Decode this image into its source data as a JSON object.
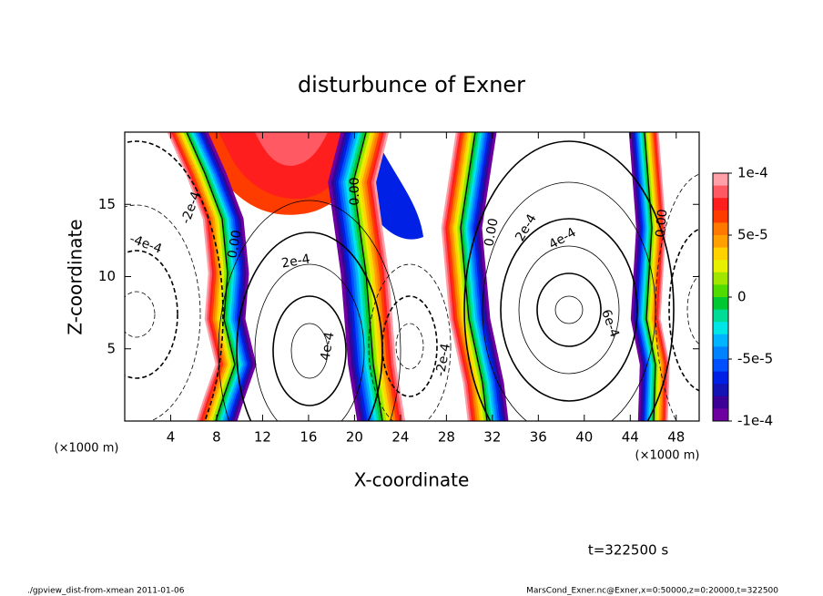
{
  "chart_data": {
    "type": "contour",
    "title": "disturbunce of Exner",
    "xlabel": "X-coordinate",
    "ylabel": "Z-coordinate",
    "xunit": "(×1000 m)",
    "xlim": [
      0,
      50
    ],
    "ylim": [
      0,
      20
    ],
    "xticks": [
      4,
      8,
      12,
      16,
      20,
      24,
      28,
      32,
      36,
      40,
      44,
      48
    ],
    "yticks": [
      5,
      10,
      15
    ],
    "clim": [
      -0.0001,
      0.0001
    ],
    "cticks": [
      {
        "value": 0.0001,
        "label": "1e-4"
      },
      {
        "value": 5e-05,
        "label": "5e-5"
      },
      0,
      {
        "value": -5e-05,
        "label": "-5e-5"
      },
      {
        "value": -0.0001,
        "label": "-1e-4"
      }
    ],
    "colors": [
      "#ff9fa8",
      "#ff5a64",
      "#ff1e1e",
      "#ff3c00",
      "#ff7800",
      "#ffa000",
      "#ffd200",
      "#e6f000",
      "#a0e600",
      "#50dc00",
      "#00c832",
      "#00dc96",
      "#00e6e6",
      "#00b4ff",
      "#0082ff",
      "#0050ff",
      "#0020e6",
      "#1414b4",
      "#3c0096",
      "#6e00a0"
    ],
    "contour_labels": [
      {
        "value": -0.0002,
        "label": "-2e-4"
      },
      {
        "value": -0.0004,
        "label": "-4e-4"
      },
      {
        "value": 0,
        "label": "0.00"
      },
      {
        "value": 0.0002,
        "label": "2e-4"
      },
      {
        "value": 0.0004,
        "label": "4e-4"
      },
      {
        "value": 0,
        "label": "0.00"
      },
      {
        "value": -0.0002,
        "label": "-2e-4"
      },
      {
        "value": 0,
        "label": "0.00"
      },
      {
        "value": 0.0002,
        "label": "2e-4"
      },
      {
        "value": 0.0004,
        "label": "4e-4"
      },
      {
        "value": 0.0006,
        "label": "6e-4"
      },
      {
        "value": 0,
        "label": "0.00"
      }
    ],
    "time_label": "t=322500 s",
    "footer_left": "./gpview_dist-from-xmean  2011-01-06",
    "footer_right": "MarsCond_Exner.nc@Exner,x=0:50000,z=0:20000,t=322500"
  }
}
